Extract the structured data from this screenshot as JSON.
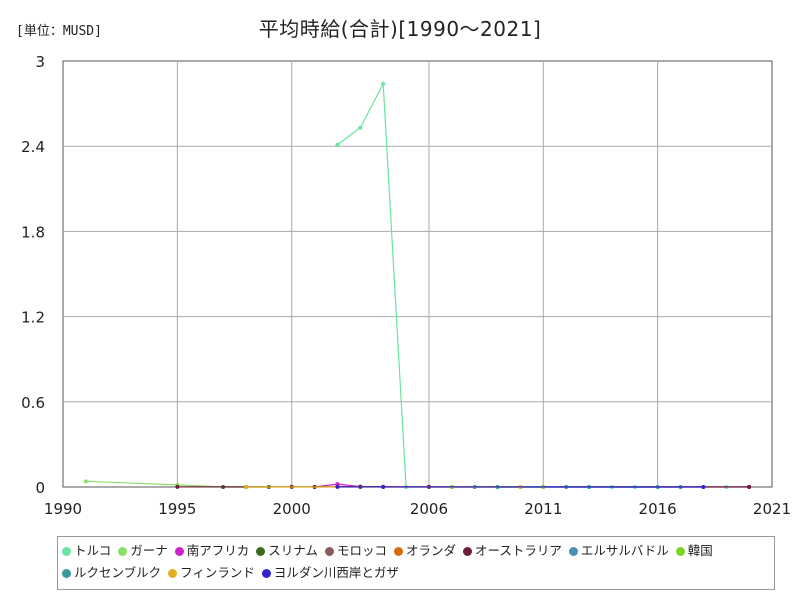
{
  "header": {
    "unit": "[単位：MUSD]",
    "title": "平均時給(合計)[1990～2021]"
  },
  "chart_data": {
    "type": "line",
    "title": "平均時給(合計)[1990～2021]",
    "unit": "[単位：MUSD]",
    "xlim": [
      1990,
      2021
    ],
    "ylim": [
      0,
      3
    ],
    "x_ticks": [
      "1990",
      "1995",
      "2000",
      "2006",
      "2011",
      "2016",
      "2021"
    ],
    "y_ticks": [
      "0",
      "0.6",
      "1.2",
      "1.8",
      "2.4",
      "3"
    ],
    "grid": true,
    "legend_position": "bottom",
    "series": [
      {
        "name": "トルコ",
        "color": "#66e6a0",
        "points": [
          [
            2002,
            2.41
          ],
          [
            2003,
            2.53
          ],
          [
            2004,
            2.84
          ],
          [
            2005,
            0.0
          ],
          [
            2006,
            0.0
          ],
          [
            2007,
            0.0
          ],
          [
            2008,
            0.0
          ],
          [
            2009,
            0.0
          ],
          [
            2010,
            0.0
          ],
          [
            2011,
            0.0
          ],
          [
            2012,
            0.0
          ],
          [
            2013,
            0.0
          ],
          [
            2014,
            0.0
          ],
          [
            2015,
            0.0
          ],
          [
            2016,
            0.0
          ],
          [
            2017,
            0.0
          ],
          [
            2018,
            0.0
          ],
          [
            2019,
            0.0
          ],
          [
            2020,
            0.0
          ]
        ]
      },
      {
        "name": "ガーナ",
        "color": "#88e066",
        "points": [
          [
            1991,
            0.04
          ],
          [
            1995,
            0.015
          ],
          [
            1997,
            0.0
          ]
        ]
      },
      {
        "name": "南アフリカ",
        "color": "#cc22cc",
        "points": [
          [
            2001,
            0.0
          ],
          [
            2002,
            0.02
          ],
          [
            2003,
            0.003
          ],
          [
            2004,
            0.0
          ],
          [
            2020,
            0.0
          ]
        ]
      },
      {
        "name": "スリナム",
        "color": "#3a6b1e",
        "points": [
          [
            1997,
            0.0
          ],
          [
            1998,
            0.0
          ],
          [
            1999,
            0.0
          ]
        ]
      },
      {
        "name": "モロッコ",
        "color": "#8b5a5a",
        "points": [
          [
            2002,
            0.003
          ],
          [
            2004,
            0.002
          ]
        ]
      },
      {
        "name": "オランダ",
        "color": "#d46a0a",
        "points": [
          [
            2002,
            0.002
          ],
          [
            2003,
            0.002
          ]
        ]
      },
      {
        "name": "オーストラリア",
        "color": "#6b1f3a",
        "points": [
          [
            1995,
            0.001
          ],
          [
            2000,
            0.001
          ],
          [
            2001,
            0.001
          ],
          [
            2003,
            0.001
          ],
          [
            2006,
            0.001
          ],
          [
            2020,
            0.001
          ]
        ]
      },
      {
        "name": "エルサルバドル",
        "color": "#4a8fb0",
        "points": [
          [
            2008,
            0.0
          ],
          [
            2012,
            0.0
          ],
          [
            2016,
            0.0
          ]
        ]
      },
      {
        "name": "韓国",
        "color": "#7cd41e",
        "points": [
          [
            2007,
            0.0
          ],
          [
            2011,
            0.0
          ]
        ]
      },
      {
        "name": "ルクセンブルク",
        "color": "#3a9a9a",
        "points": [
          [
            2009,
            0.0
          ],
          [
            2013,
            0.0
          ],
          [
            2017,
            0.0
          ]
        ]
      },
      {
        "name": "フィンランド",
        "color": "#e0b020",
        "points": [
          [
            1998,
            0.0
          ],
          [
            2010,
            0.0
          ]
        ]
      },
      {
        "name": "ヨルダン川西岸とガザ",
        "color": "#3322cc",
        "points": [
          [
            2002,
            0.001
          ],
          [
            2004,
            0.001
          ],
          [
            2018,
            0.0
          ]
        ]
      }
    ]
  }
}
